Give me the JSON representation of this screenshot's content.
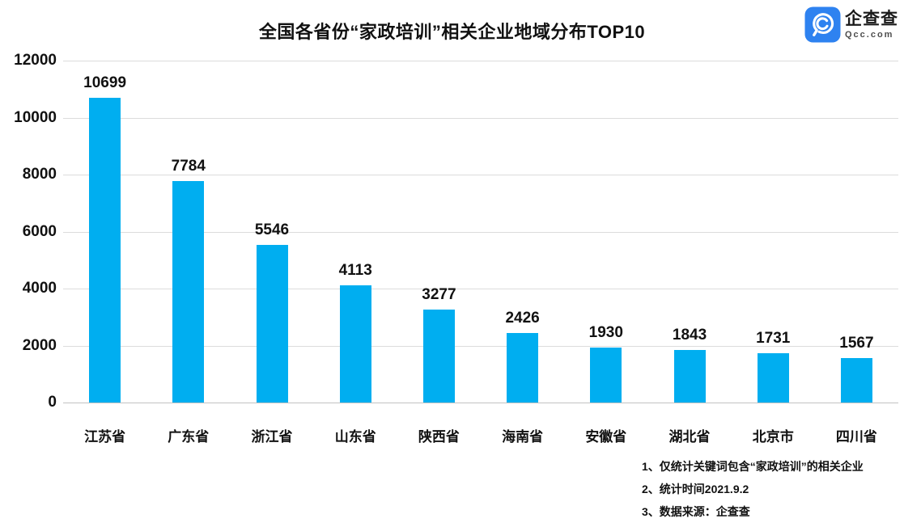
{
  "header": {
    "title": "全国各省份“家政培训”相关企业地域分布TOP10",
    "logo": {
      "name": "企查查",
      "domain": "Qcc.com",
      "brand_color": "#2E82F0"
    }
  },
  "chart_data": {
    "type": "bar",
    "title": "全国各省份“家政培训”相关企业地域分布TOP10",
    "categories": [
      "江苏省",
      "广东省",
      "浙江省",
      "山东省",
      "陕西省",
      "海南省",
      "安徽省",
      "湖北省",
      "北京市",
      "四川省"
    ],
    "values": [
      10699,
      7784,
      5546,
      4113,
      3277,
      2426,
      1930,
      1843,
      1731,
      1567
    ],
    "data_labels_shown": true,
    "xlabel": "",
    "ylabel": "",
    "ylim": [
      0,
      12000
    ],
    "yticks": [
      0,
      2000,
      4000,
      6000,
      8000,
      10000,
      12000
    ],
    "grid": true,
    "legend_position": "none",
    "bar_color": "#00AEF0",
    "gridline_color": "#dcdcdc"
  },
  "footnotes": [
    "1、仅统计关键词包含“家政培训”的相关企业",
    "2、统计时间2021.9.2",
    "3、数据来源：企查查"
  ]
}
